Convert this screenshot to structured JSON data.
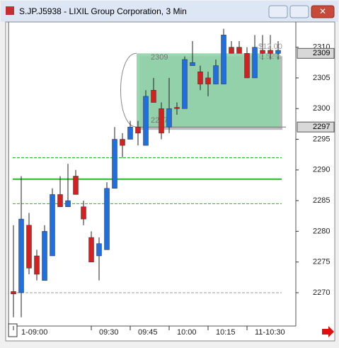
{
  "window_title": "S.JP.J5938 - LIXIL Group Corporation, 3 Min",
  "chart_data": {
    "type": "candlestick",
    "open": [
      2270.2,
      2270,
      2281,
      2276,
      2272,
      2276,
      2286,
      2284,
      2289,
      2284,
      2279,
      2276,
      2277,
      2287,
      2295,
      2295,
      2297,
      2294,
      2303,
      2300,
      2297,
      2300.2,
      2300,
      2307,
      2306,
      2305,
      2304,
      2304,
      2310,
      2310,
      2309,
      2305,
      2309.5,
      2309.5,
      2309
    ],
    "high": [
      2281,
      2289,
      2283,
      2277,
      2281,
      2287,
      2289,
      2291,
      2290,
      2285,
      2280,
      2279,
      2288,
      2297,
      2296,
      2298,
      2298,
      2303,
      2305,
      2301,
      2305,
      2301,
      2308.5,
      2311,
      2307,
      2306,
      2308,
      2313,
      2311,
      2311,
      2310,
      2312,
      2312,
      2312,
      2311
    ],
    "low": [
      2266,
      2266,
      2273,
      2272,
      2272,
      2276,
      2284,
      2284,
      2286,
      2281,
      2275,
      2272,
      2277,
      2287,
      2292,
      2295,
      2294,
      2294,
      2301,
      2295,
      2296,
      2299,
      2300,
      2307,
      2303,
      2302,
      2304,
      2304,
      2309,
      2309,
      2305,
      2305,
      2308,
      2308,
      2308
    ],
    "close": [
      2269.8,
      2282,
      2274,
      2273,
      2280,
      2286,
      2284,
      2285,
      2286,
      2282,
      2275,
      2278,
      2287,
      2295,
      2294,
      2297,
      2296,
      2302,
      2301,
      2296,
      2300,
      2300,
      2308,
      2307.5,
      2304,
      2304,
      2307,
      2312,
      2309,
      2309,
      2305,
      2310,
      2309,
      2309,
      2309.5
    ],
    "up_color": "#1f6fe0",
    "down_color": "#d42020",
    "ylim": [
      2264.8,
      2314
    ],
    "yticks": [
      2270,
      2275,
      2280,
      2285,
      2290,
      2295,
      2300,
      2305,
      2310
    ],
    "xticks": [
      {
        "value": 0,
        "label": "1-09:00"
      },
      {
        "value": 10,
        "label": "09:30"
      },
      {
        "value": 15,
        "label": "09:45"
      },
      {
        "value": 20,
        "label": "10:00"
      },
      {
        "value": 25,
        "label": "10:15"
      },
      {
        "value": 30,
        "label": "11-10:30"
      }
    ],
    "lines": [
      {
        "value": 2292,
        "style": "dashed",
        "color": "#22b822"
      },
      {
        "value": 2288.5,
        "style": "solid",
        "color": "#22b822"
      },
      {
        "value": 2284.5,
        "style": "dashed",
        "color": "#22b822"
      },
      {
        "value": 2270,
        "style": "dashed",
        "color": "#999999"
      }
    ],
    "highlight": {
      "from": 16,
      "to": 34,
      "top": 2309,
      "bottom": 2297,
      "color": "#8fd4a8"
    },
    "annotations": [
      "$12.00",
      "0.52%"
    ]
  }
}
